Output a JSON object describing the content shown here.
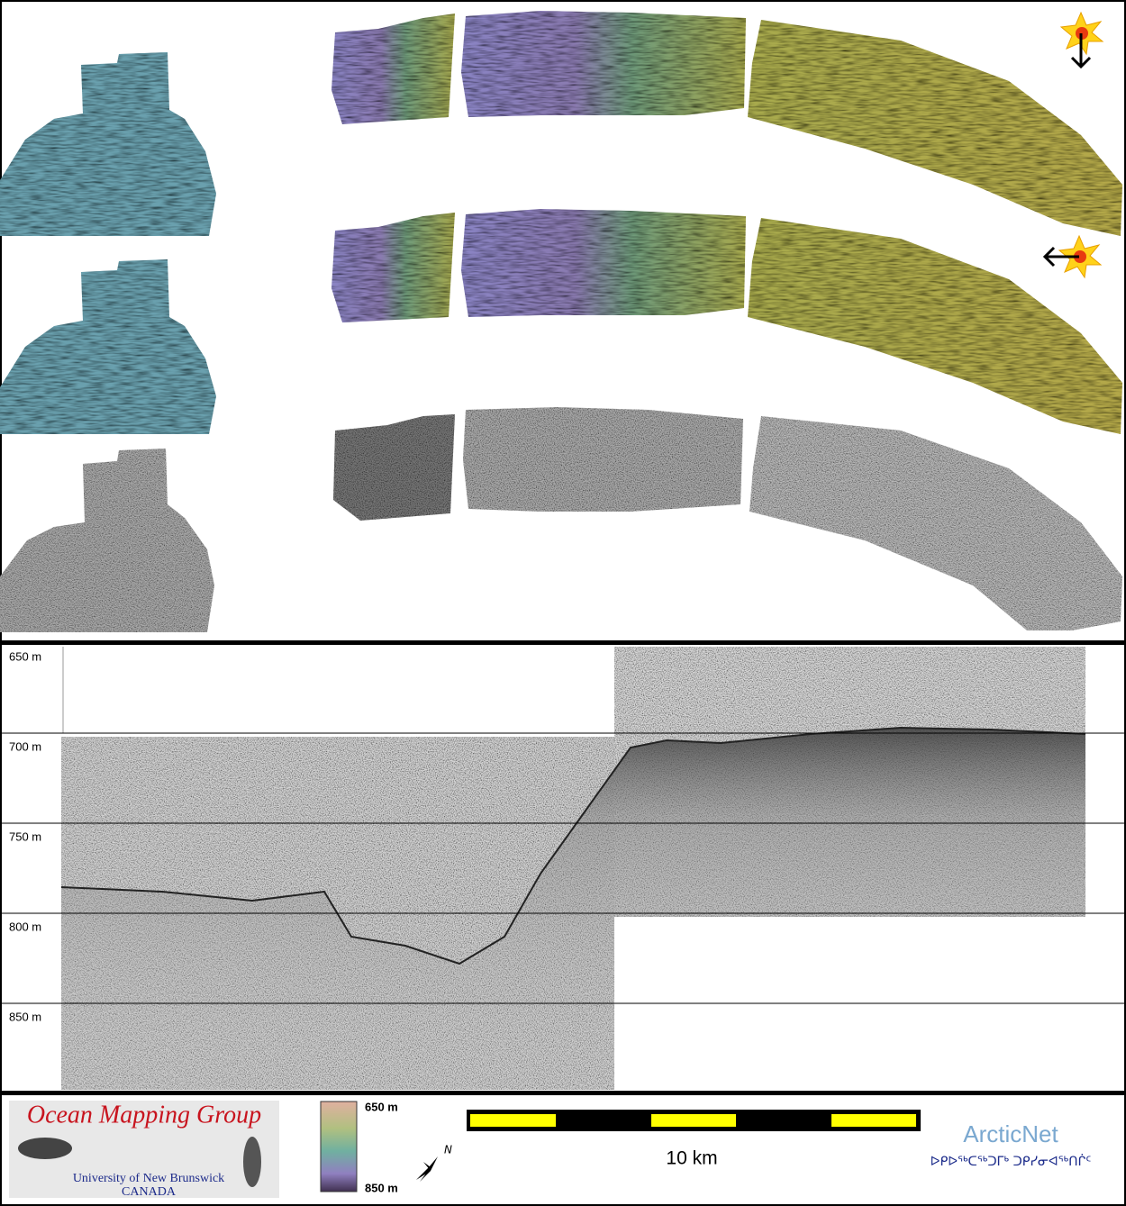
{
  "profile": {
    "depth_labels": [
      "650 m",
      "700 m",
      "750 m",
      "800 m",
      "850 m"
    ]
  },
  "footer": {
    "logo": {
      "title": "Ocean Mapping Group",
      "university": "University of New Brunswick",
      "country": "CANADA"
    },
    "colorbar": {
      "top_label": "650 m",
      "bottom_label": "850 m"
    },
    "north": "N",
    "scale_bar": {
      "label": "10 km"
    },
    "partner": {
      "name": "ArcticNet",
      "syllabics": "ᐅᑭᐅᖅᑕᖅᑐᒥᒃ ᑐᑭᓯᓂᐊᖅᑎᒌᑦ"
    }
  }
}
